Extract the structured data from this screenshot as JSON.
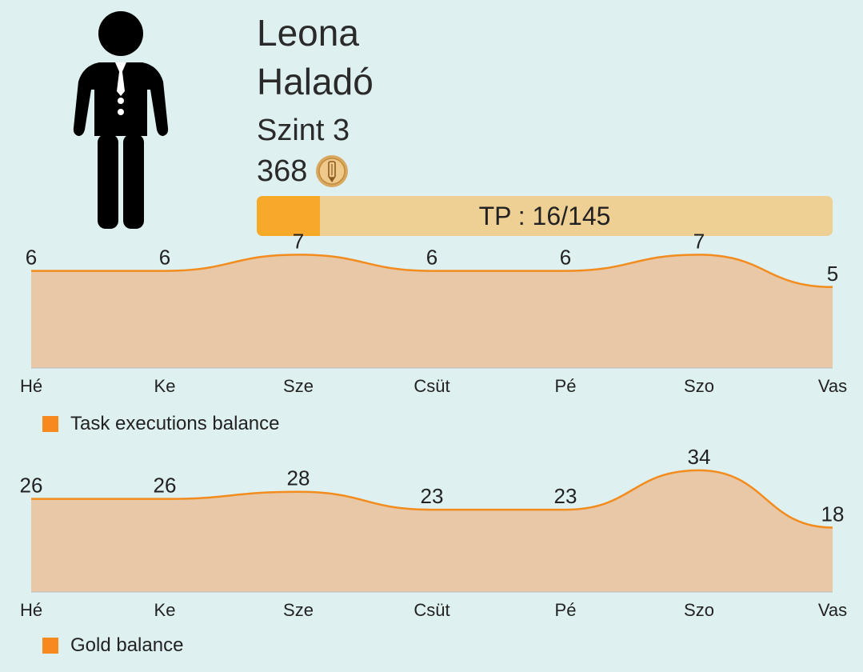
{
  "profile": {
    "name": "Leona",
    "rank": "Haladó",
    "level": "Szint 3",
    "gold": "368",
    "gold_icon": "coin-icon",
    "avatar_icon": "person-in-suit-icon"
  },
  "tp_bar": {
    "label": "TP : 16/145",
    "current": 16,
    "max": 145
  },
  "colors": {
    "background": "#dff0f0",
    "accent_orange": "#f7a92a",
    "bar_track": "#eecf94",
    "chart_line": "#f28c1e",
    "chart_fill": "#e8c8a6",
    "legend_swatch": "#f7891f"
  },
  "chart_data": [
    {
      "type": "area",
      "categories": [
        "Hé",
        "Ke",
        "Sze",
        "Csüt",
        "Pé",
        "Szo",
        "Vas"
      ],
      "series": [
        {
          "name": "Task executions balance",
          "values": [
            6,
            6,
            7,
            6,
            6,
            7,
            5
          ]
        }
      ],
      "ylim": [
        0,
        8.4
      ],
      "grid": false,
      "legend": "bottom-left"
    },
    {
      "type": "area",
      "categories": [
        "Hé",
        "Ke",
        "Sze",
        "Csüt",
        "Pé",
        "Szo",
        "Vas"
      ],
      "series": [
        {
          "name": "Gold balance",
          "values": [
            26,
            26,
            28,
            23,
            23,
            34,
            18
          ]
        }
      ],
      "ylim": [
        0,
        38
      ],
      "grid": false,
      "legend": "bottom-left"
    }
  ]
}
